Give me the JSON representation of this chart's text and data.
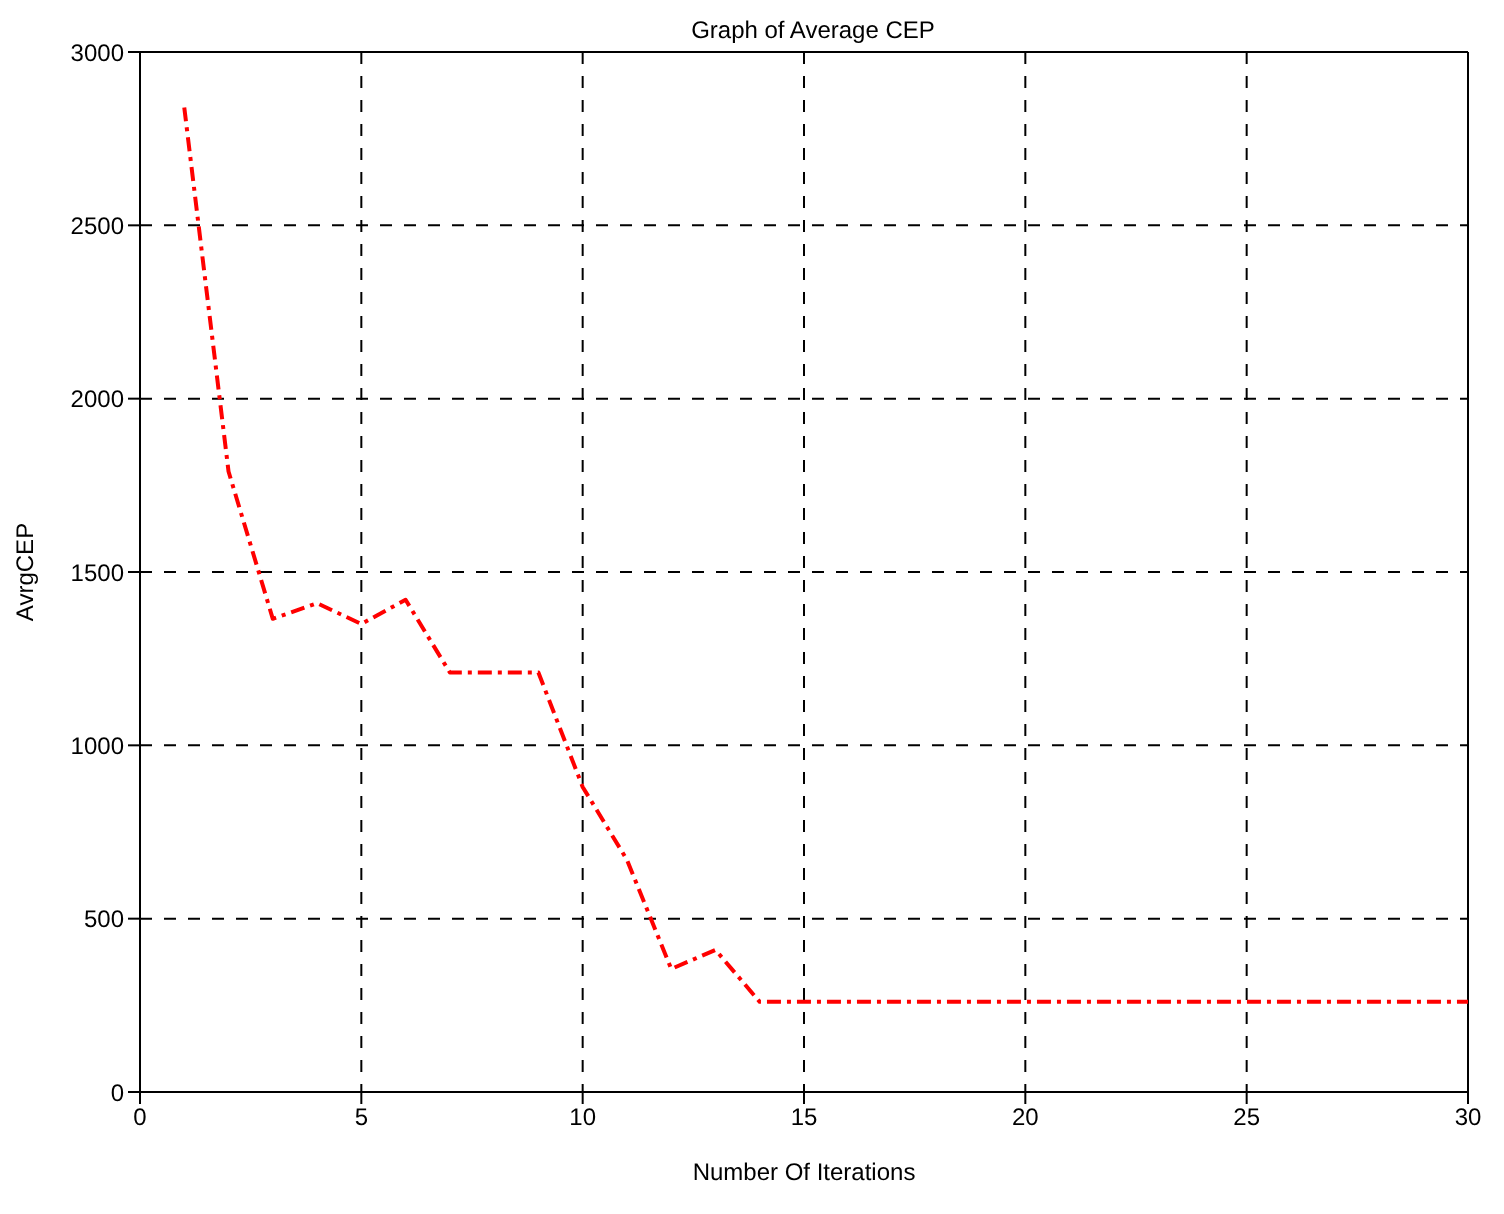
{
  "chart_data": {
    "type": "line",
    "title": "Graph of Average CEP",
    "xlabel": "Number Of Iterations",
    "ylabel": "AvrgCEP",
    "x": [
      1,
      2,
      3,
      4,
      5,
      6,
      7,
      8,
      9,
      10,
      11,
      12,
      13,
      14,
      15,
      16,
      17,
      18,
      19,
      20,
      21,
      22,
      23,
      24,
      25,
      26,
      27,
      28,
      29,
      30
    ],
    "series": [
      {
        "color": "#ff0000",
        "values": [
          2840,
          1790,
          1365,
          1410,
          1350,
          1420,
          1210,
          1210,
          1210,
          880,
          670,
          355,
          410,
          260,
          260,
          260,
          260,
          260,
          260,
          260,
          260,
          260,
          260,
          260,
          260,
          260,
          260,
          260,
          260,
          260
        ]
      }
    ],
    "xlim": [
      0,
      30
    ],
    "xticks": [
      0,
      5,
      10,
      15,
      20,
      25,
      30
    ],
    "ylim": [
      0,
      3000
    ],
    "yticks": [
      0,
      500,
      1000,
      1500,
      2000,
      2500,
      3000
    ],
    "grid": true,
    "legend": false,
    "marker": "none",
    "line_style": "dashed"
  }
}
